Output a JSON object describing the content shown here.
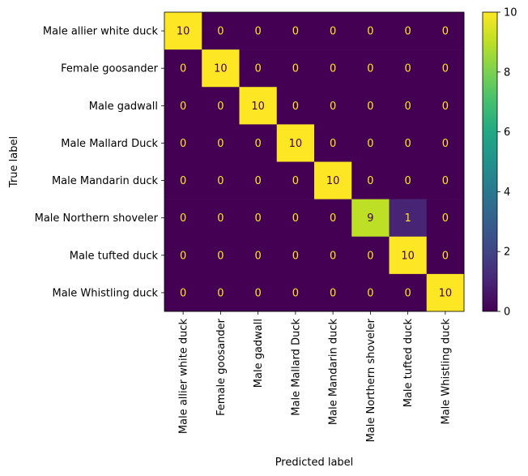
{
  "chart_data": {
    "type": "heatmap",
    "title": "",
    "xlabel": "Predicted label",
    "ylabel": "True label",
    "categories": [
      "Male allier white duck",
      "Female goosander",
      "Male gadwall",
      "Male Mallard Duck",
      "Male Mandarin duck",
      "Male Northern shoveler",
      "Male tufted duck",
      "Male Whistling duck"
    ],
    "matrix": [
      [
        10,
        0,
        0,
        0,
        0,
        0,
        0,
        0
      ],
      [
        0,
        10,
        0,
        0,
        0,
        0,
        0,
        0
      ],
      [
        0,
        0,
        10,
        0,
        0,
        0,
        0,
        0
      ],
      [
        0,
        0,
        0,
        10,
        0,
        0,
        0,
        0
      ],
      [
        0,
        0,
        0,
        0,
        10,
        0,
        0,
        0
      ],
      [
        0,
        0,
        0,
        0,
        0,
        9,
        1,
        0
      ],
      [
        0,
        0,
        0,
        0,
        0,
        0,
        10,
        0
      ],
      [
        0,
        0,
        0,
        0,
        0,
        0,
        0,
        10
      ]
    ],
    "vmin": 0,
    "vmax": 10,
    "colorbar": {
      "ticks": [
        0,
        2,
        4,
        6,
        8,
        10
      ],
      "colormap": "viridis"
    },
    "text_colors": {
      "on_dark": "#fde725",
      "on_light": "#440154"
    },
    "grid": false
  }
}
